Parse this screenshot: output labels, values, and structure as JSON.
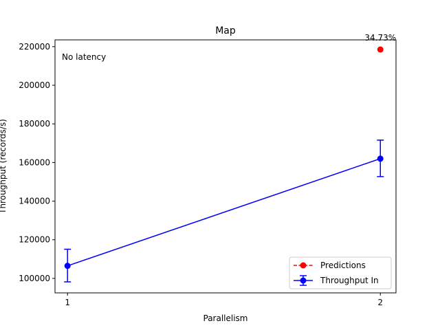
{
  "chart_data": {
    "type": "line",
    "title": "Map",
    "xlabel": "Parallelism",
    "ylabel": "Throughput (records/s)",
    "annotation": "No latency",
    "x": [
      1,
      2
    ],
    "xticks": [
      "1",
      "2"
    ],
    "xlim": [
      0.96,
      2.05
    ],
    "ylim": [
      92500,
      223500
    ],
    "yticks": [
      100000,
      120000,
      140000,
      160000,
      180000,
      200000,
      220000
    ],
    "ytick_labels": [
      "100000",
      "120000",
      "140000",
      "160000",
      "180000",
      "200000",
      "220000"
    ],
    "series": [
      {
        "name": "Throughput In",
        "x": [
          1,
          2
        ],
        "values": [
          106500,
          162000
        ],
        "err_low": [
          98200,
          152700
        ],
        "err_high": [
          115100,
          171600
        ],
        "color": "#0000ff",
        "marker": "circle",
        "errorbars": true
      },
      {
        "name": "Predictions",
        "x": [
          2
        ],
        "values": [
          218500
        ],
        "color": "#ff0000",
        "marker": "circle",
        "linestyle": "dashed",
        "point_labels": [
          "34.73%"
        ]
      }
    ],
    "legend": {
      "position": "bottom-right",
      "order": [
        "Predictions",
        "Throughput In"
      ]
    },
    "grid": false
  }
}
